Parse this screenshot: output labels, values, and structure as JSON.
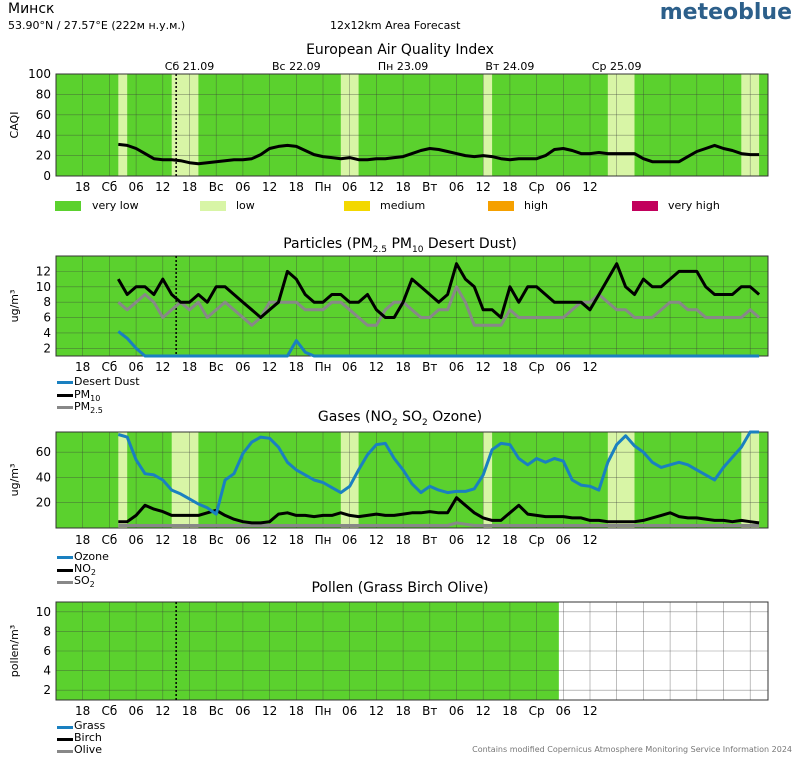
{
  "header": {
    "city": "Минск",
    "coords": "53.90°N / 27.57°E (222м н.у.м.)",
    "subtitle": "12x12km Area Forecast",
    "brand": "meteoblue"
  },
  "footer": "Contains modified Copernicus Atmosphere Monitoring Service Information 2024",
  "colors": {
    "very_low": "#5bd12e",
    "low": "#d8f5a6",
    "medium": "#f3d800",
    "high": "#f5a000",
    "very_high": "#c2005c",
    "ozone": "#1a80c0",
    "no2": "#000000",
    "so2": "#888888",
    "desert_dust": "#1a80c0",
    "pm10": "#000000",
    "pm25": "#888888",
    "grass": "#1a80c0",
    "birch": "#000000",
    "olive": "#888888"
  },
  "x_ticks": [
    "18",
    "Сб",
    "06",
    "12",
    "18",
    "Вс",
    "06",
    "12",
    "18",
    "Пн",
    "06",
    "12",
    "18",
    "Вт",
    "06",
    "12",
    "18",
    "Ср",
    "06",
    "12"
  ],
  "day_labels": [
    "Сб 21.09",
    "Вс 22.09",
    "Пн 23.09",
    "Вт 24.09",
    "Ср 25.09"
  ],
  "aqi_legend": [
    {
      "label": "very low",
      "color": "#5bd12e"
    },
    {
      "label": "low",
      "color": "#d8f5a6"
    },
    {
      "label": "medium",
      "color": "#f3d800"
    },
    {
      "label": "high",
      "color": "#f5a000"
    },
    {
      "label": "very high",
      "color": "#c2005c"
    }
  ],
  "labels": {
    "caqi": "CAQI",
    "ugm3": "ug/m³",
    "pollenm3": "pollen/m³"
  },
  "chart_data": [
    {
      "type": "area",
      "title": "European Air Quality Index",
      "ylabel": "CAQI",
      "ylim": [
        0,
        100
      ],
      "yticks": [
        0,
        20,
        40,
        60,
        80,
        100
      ],
      "x": [
        14,
        16,
        18,
        20,
        22,
        24,
        26,
        28,
        30,
        32,
        34,
        36,
        38,
        40,
        42,
        44,
        46,
        48,
        50,
        52,
        54,
        56,
        58,
        60,
        62,
        64,
        66,
        68,
        70,
        72,
        74,
        76,
        78,
        80,
        82,
        84,
        86,
        88,
        90,
        92,
        94,
        96,
        98,
        100,
        102,
        104,
        106,
        108,
        110,
        112,
        114,
        116,
        118,
        120,
        122,
        124,
        126,
        128,
        130,
        132,
        134,
        136,
        138,
        140,
        142,
        144,
        146,
        148,
        150,
        152,
        154,
        156,
        158
      ],
      "series": [
        {
          "name": "CAQI",
          "values": [
            31,
            30,
            27,
            22,
            17,
            16,
            16,
            15,
            13,
            12,
            13,
            14,
            15,
            16,
            16,
            17,
            21,
            27,
            29,
            30,
            29,
            25,
            21,
            19,
            18,
            17,
            18,
            16,
            16,
            17,
            17,
            18,
            19,
            22,
            25,
            27,
            26,
            24,
            22,
            20,
            19,
            20,
            19,
            17,
            16,
            17,
            17,
            17,
            20,
            26,
            27,
            25,
            22,
            22,
            23,
            22,
            22,
            22,
            22,
            17,
            14,
            14,
            14,
            14,
            19,
            24,
            27,
            30,
            27,
            25,
            22,
            21,
            21
          ]
        }
      ],
      "low_bands": [
        [
          14,
          16
        ],
        [
          26,
          32
        ],
        [
          64,
          68
        ],
        [
          96,
          98
        ],
        [
          124,
          130
        ],
        [
          154,
          158
        ]
      ]
    },
    {
      "type": "line",
      "title": "Particles",
      "ylabel": "ug/m³",
      "ylim": [
        1,
        14
      ],
      "yticks": [
        2,
        4,
        6,
        8,
        10,
        12
      ],
      "x": [
        14,
        16,
        18,
        20,
        22,
        24,
        26,
        28,
        30,
        32,
        34,
        36,
        38,
        40,
        42,
        44,
        46,
        48,
        50,
        52,
        54,
        56,
        58,
        60,
        62,
        64,
        66,
        68,
        70,
        72,
        74,
        76,
        78,
        80,
        82,
        84,
        86,
        88,
        90,
        92,
        94,
        96,
        98,
        100,
        102,
        104,
        106,
        108,
        110,
        112,
        114,
        116,
        118,
        120,
        122,
        124,
        126,
        128,
        130,
        132,
        134,
        136,
        138,
        140,
        142,
        144,
        146,
        148,
        150,
        152,
        154,
        156,
        158
      ],
      "series": [
        {
          "name": "Desert Dust",
          "values": [
            4.2,
            3.3,
            2,
            1,
            1,
            1,
            1,
            1,
            1,
            1,
            1,
            1,
            1,
            1,
            1,
            1,
            1,
            1,
            1,
            1,
            3,
            1.5,
            1,
            1,
            1,
            1,
            1,
            1,
            1,
            1,
            1,
            1,
            1,
            1,
            1,
            1,
            1,
            1,
            1,
            1,
            1,
            1,
            1,
            1,
            1,
            1,
            1,
            1,
            1,
            1,
            1,
            1,
            1,
            1,
            1,
            1,
            1,
            1,
            1,
            1,
            1,
            1,
            1,
            1,
            1,
            1,
            1,
            1,
            1,
            1,
            1,
            1,
            1
          ]
        },
        {
          "name": "PM10",
          "values": [
            11,
            9,
            10,
            10,
            9,
            11,
            9,
            8,
            8,
            9,
            8,
            10,
            10,
            9,
            8,
            7,
            6,
            7,
            8,
            12,
            11,
            9,
            8,
            8,
            9,
            9,
            8,
            8,
            9,
            7,
            6,
            6,
            8,
            11,
            10,
            9,
            8,
            9,
            13,
            11,
            10,
            7,
            7,
            6,
            10,
            8,
            10,
            10,
            9,
            8,
            8,
            8,
            8,
            7,
            9,
            11,
            13,
            10,
            9,
            11,
            10,
            10,
            11,
            12,
            12,
            12,
            10,
            9,
            9,
            9,
            10,
            10,
            9
          ]
        },
        {
          "name": "PM2.5",
          "values": [
            8,
            7,
            8,
            9,
            8,
            6,
            7,
            8,
            7,
            8,
            6,
            7,
            8,
            7,
            6,
            5,
            6,
            8,
            8,
            8,
            8,
            7,
            7,
            7,
            8,
            8,
            7,
            6,
            5,
            5,
            7,
            8,
            8,
            7,
            6,
            6,
            7,
            7,
            10,
            8,
            5,
            5,
            5,
            5,
            7,
            6,
            6,
            6,
            6,
            6,
            6,
            7,
            8,
            8,
            9,
            8,
            7,
            7,
            6,
            6,
            6,
            7,
            8,
            8,
            7,
            7,
            6,
            6,
            6,
            6,
            6,
            7,
            6
          ]
        }
      ]
    },
    {
      "type": "line",
      "title": "Gases",
      "ylabel": "ug/m³",
      "ylim": [
        0,
        76
      ],
      "yticks": [
        20,
        40,
        60
      ],
      "x": [
        14,
        16,
        18,
        20,
        22,
        24,
        26,
        28,
        30,
        32,
        34,
        36,
        38,
        40,
        42,
        44,
        46,
        48,
        50,
        52,
        54,
        56,
        58,
        60,
        62,
        64,
        66,
        68,
        70,
        72,
        74,
        76,
        78,
        80,
        82,
        84,
        86,
        88,
        90,
        92,
        94,
        96,
        98,
        100,
        102,
        104,
        106,
        108,
        110,
        112,
        114,
        116,
        118,
        120,
        122,
        124,
        126,
        128,
        130,
        132,
        134,
        136,
        138,
        140,
        142,
        144,
        146,
        148,
        150,
        152,
        154,
        156,
        158
      ],
      "series": [
        {
          "name": "Ozone",
          "values": [
            74,
            72,
            54,
            43,
            42,
            38,
            30,
            27,
            23,
            19,
            16,
            11,
            38,
            43,
            59,
            68,
            72,
            71,
            64,
            52,
            46,
            42,
            38,
            36,
            32,
            28,
            33,
            46,
            58,
            66,
            67,
            55,
            46,
            35,
            28,
            33,
            30,
            28,
            29,
            29,
            31,
            42,
            62,
            67,
            66,
            55,
            50,
            55,
            52,
            55,
            53,
            38,
            34,
            33,
            30,
            52,
            66,
            73,
            65,
            60,
            52,
            48,
            50,
            52,
            50,
            46,
            42,
            38,
            48,
            56,
            64,
            76,
            76
          ]
        },
        {
          "name": "NO2",
          "values": [
            5,
            5,
            10,
            18,
            15,
            13,
            10,
            10,
            10,
            10,
            12,
            14,
            10,
            7,
            5,
            4,
            4,
            5,
            11,
            12,
            10,
            10,
            9,
            10,
            10,
            12,
            10,
            9,
            10,
            11,
            10,
            10,
            11,
            12,
            12,
            13,
            12,
            12,
            24,
            18,
            12,
            8,
            6,
            6,
            12,
            18,
            11,
            10,
            9,
            9,
            9,
            8,
            8,
            6,
            6,
            5,
            5,
            5,
            5,
            6,
            8,
            10,
            12,
            9,
            8,
            8,
            7,
            6,
            6,
            5,
            6,
            5,
            4
          ]
        },
        {
          "name": "SO2",
          "values": [
            2,
            2,
            2,
            2,
            2,
            2,
            2,
            2,
            2,
            2,
            2,
            2,
            2,
            2,
            2,
            2,
            2,
            2,
            2,
            2,
            2,
            2,
            2,
            2,
            2,
            2,
            2,
            2,
            2,
            2,
            2,
            2,
            2,
            2,
            2,
            2,
            2,
            2,
            4,
            3,
            2,
            2,
            2,
            2,
            2,
            2,
            2,
            2,
            2,
            2,
            2,
            2,
            2,
            2,
            2,
            2,
            2,
            2,
            2,
            2,
            2,
            2,
            2,
            2,
            2,
            2,
            2,
            2,
            2,
            2,
            2,
            2,
            2
          ]
        }
      ],
      "low_bands": [
        [
          14,
          16
        ],
        [
          26,
          32
        ],
        [
          64,
          68
        ],
        [
          96,
          98
        ],
        [
          124,
          130
        ],
        [
          154,
          158
        ]
      ]
    },
    {
      "type": "area",
      "title": "Pollen (Grass Birch Olive)",
      "ylabel": "pollen/m³",
      "ylim": [
        1,
        11
      ],
      "yticks": [
        2,
        4,
        6,
        8,
        10
      ],
      "data_until": 113,
      "series": [
        {
          "name": "Grass",
          "values": []
        },
        {
          "name": "Birch",
          "values": []
        },
        {
          "name": "Olive",
          "values": []
        }
      ]
    }
  ]
}
